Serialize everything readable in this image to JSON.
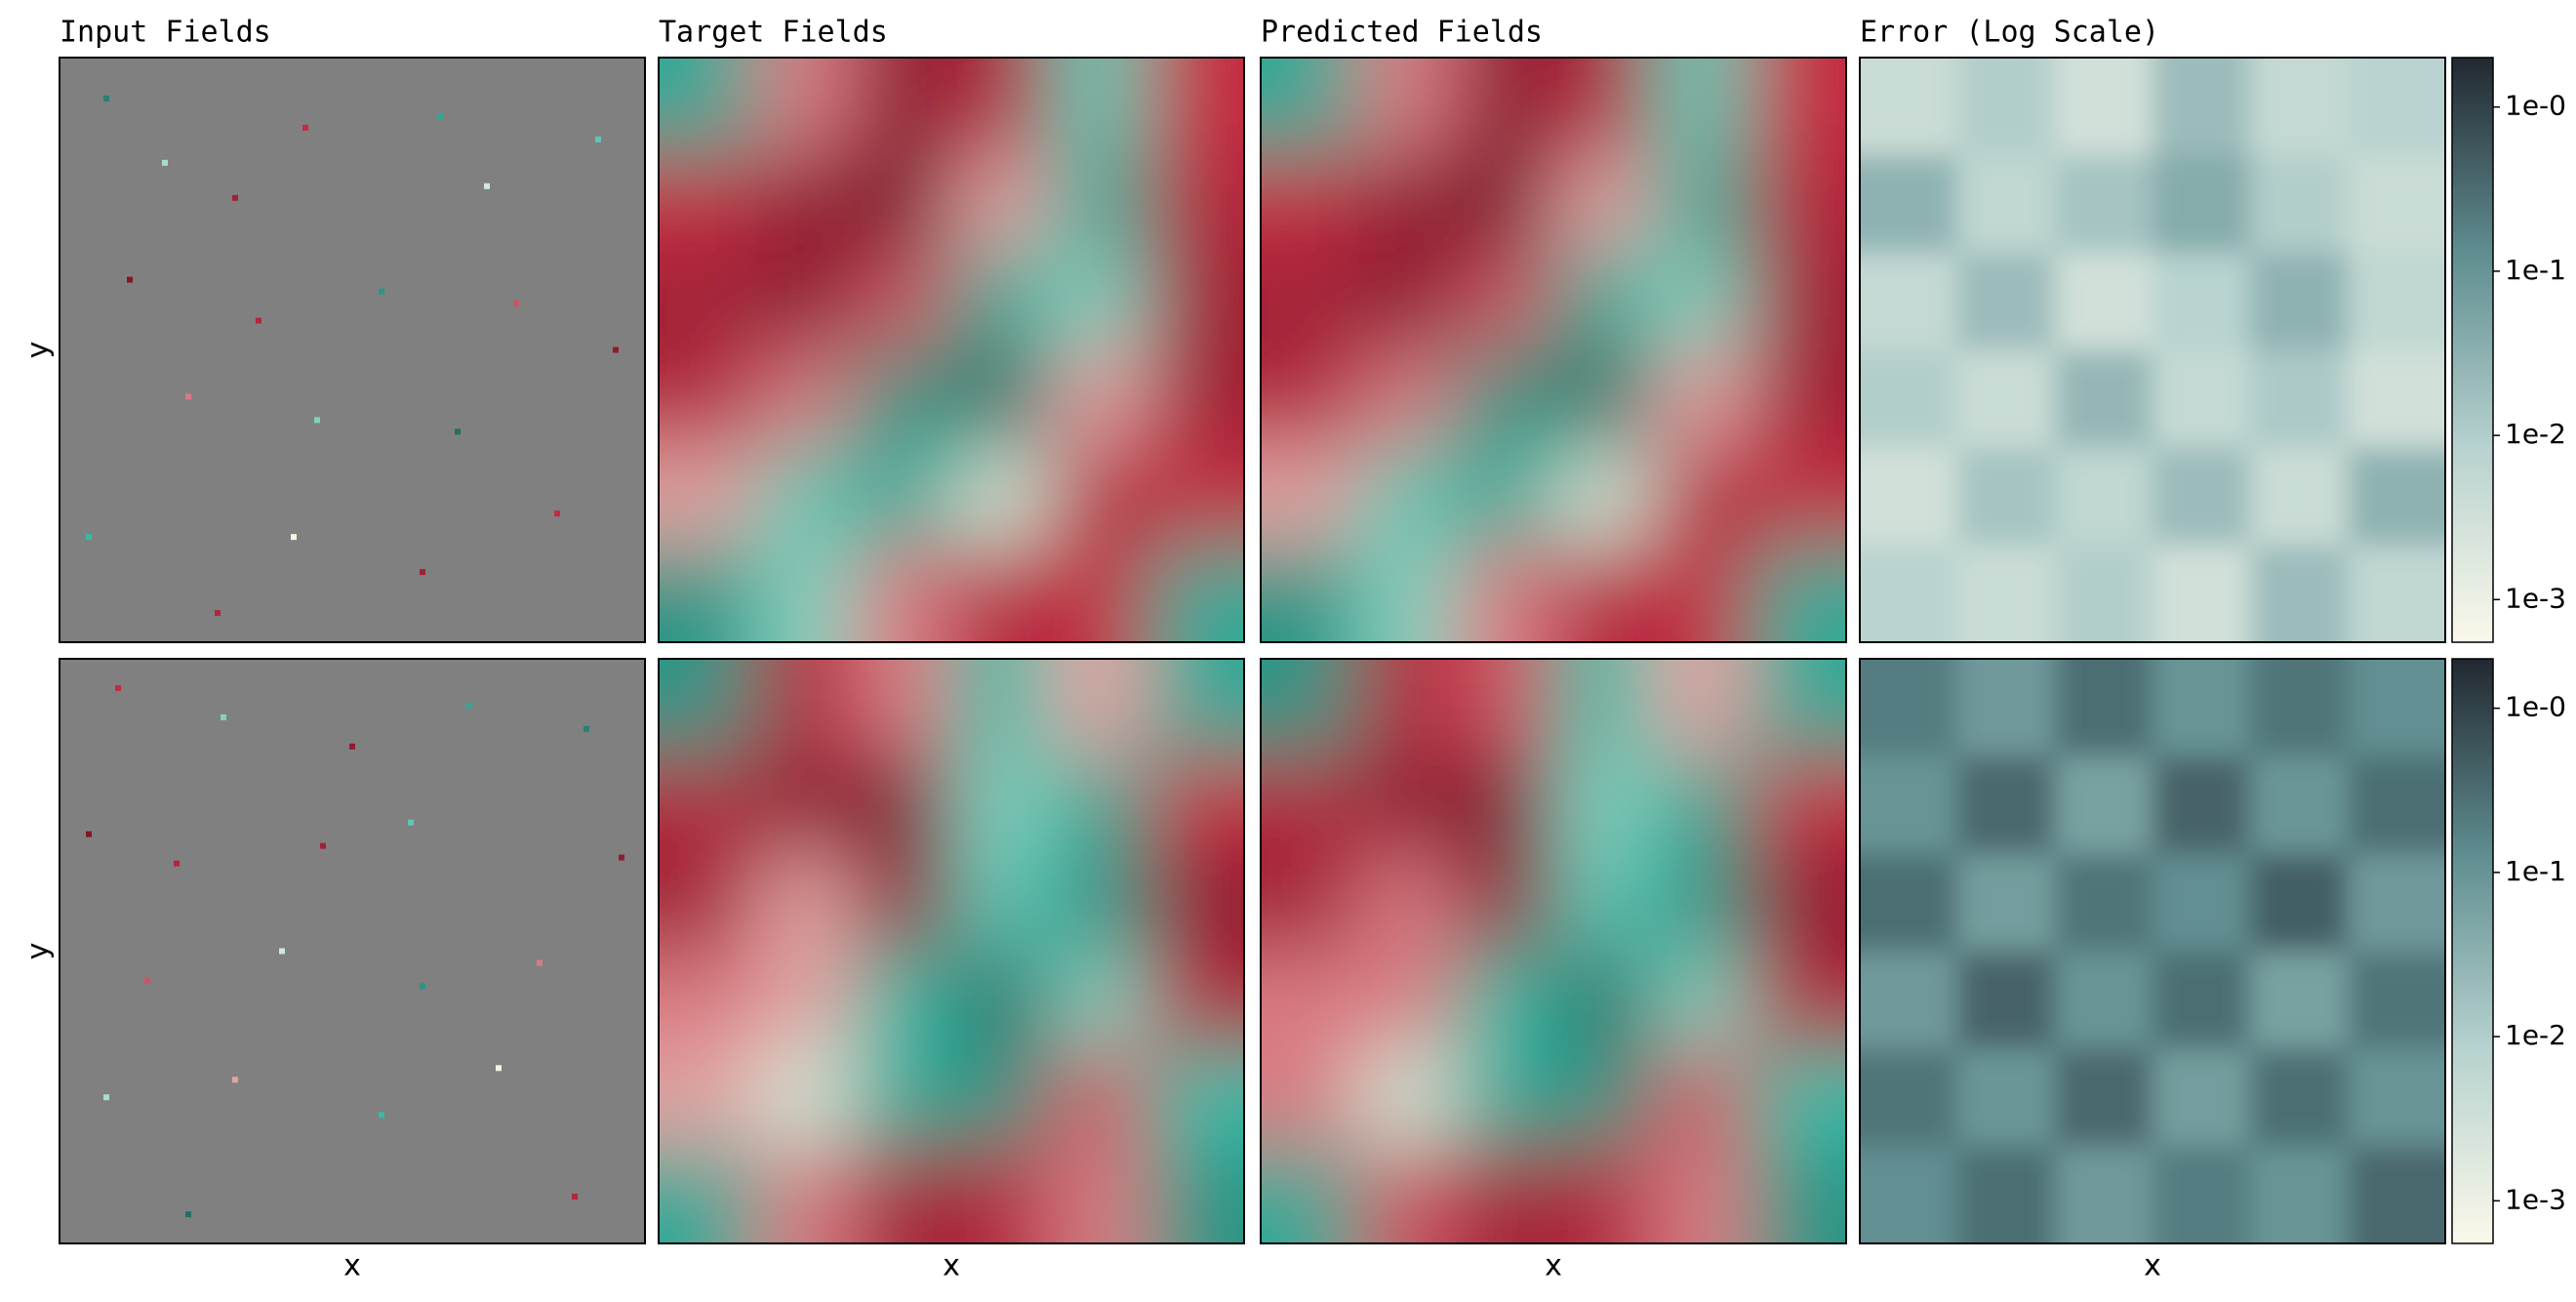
{
  "chart_data": {
    "type": "heatmap",
    "titles": [
      "Input Fields",
      "Target Fields",
      "Predicted Fields",
      "Error (Log Scale)"
    ],
    "xlabel": "x",
    "ylabel": "y",
    "xlim": [
      0,
      1
    ],
    "ylim": [
      0,
      1
    ],
    "field_clim": [
      -1,
      1
    ],
    "field_colormap": [
      "#6b1424",
      "#c42a42",
      "#f8f3e3",
      "#35bba8",
      "#1c5c54"
    ],
    "input_background": "#808080",
    "error_clim": [
      0.00055,
      2
    ],
    "error_log_scale": true,
    "error_colormap": [
      "#fbf8ea",
      "#b7d2cf",
      "#5f8d90",
      "#222831"
    ],
    "error_ticks": [
      {
        "value": 1,
        "label": "1e-0"
      },
      {
        "value": 0.1,
        "label": "1e-1"
      },
      {
        "value": 0.01,
        "label": "1e-2"
      },
      {
        "value": 0.001,
        "label": "1e-3"
      }
    ],
    "rows": [
      {
        "input": [
          {
            "x": 0.08,
            "y": 0.93,
            "value": 0.8
          },
          {
            "x": 0.18,
            "y": 0.82,
            "value": 0.2
          },
          {
            "x": 0.3,
            "y": 0.76,
            "value": -0.7
          },
          {
            "x": 0.42,
            "y": 0.88,
            "value": -0.5
          },
          {
            "x": 0.65,
            "y": 0.9,
            "value": 0.6
          },
          {
            "x": 0.73,
            "y": 0.78,
            "value": 0.1
          },
          {
            "x": 0.92,
            "y": 0.86,
            "value": 0.4
          },
          {
            "x": 0.12,
            "y": 0.62,
            "value": -0.9
          },
          {
            "x": 0.34,
            "y": 0.55,
            "value": -0.6
          },
          {
            "x": 0.55,
            "y": 0.6,
            "value": 0.7
          },
          {
            "x": 0.78,
            "y": 0.58,
            "value": -0.4
          },
          {
            "x": 0.95,
            "y": 0.5,
            "value": -0.8
          },
          {
            "x": 0.22,
            "y": 0.42,
            "value": -0.3
          },
          {
            "x": 0.44,
            "y": 0.38,
            "value": 0.3
          },
          {
            "x": 0.68,
            "y": 0.36,
            "value": 0.9
          },
          {
            "x": 0.05,
            "y": 0.18,
            "value": 0.5
          },
          {
            "x": 0.4,
            "y": 0.18,
            "value": 0.0
          },
          {
            "x": 0.62,
            "y": 0.12,
            "value": -0.7
          },
          {
            "x": 0.85,
            "y": 0.22,
            "value": -0.5
          },
          {
            "x": 0.27,
            "y": 0.05,
            "value": -0.6
          }
        ],
        "target": [
          [
            0.6,
            -0.3,
            -0.8,
            -0.6,
            0.4,
            -0.5
          ],
          [
            -0.5,
            -0.8,
            -0.9,
            -0.2,
            0.6,
            -0.6
          ],
          [
            -0.7,
            -0.8,
            -0.4,
            0.6,
            0.3,
            -0.7
          ],
          [
            -0.6,
            -0.3,
            0.7,
            0.9,
            -0.2,
            -0.7
          ],
          [
            -0.2,
            0.4,
            0.6,
            0.1,
            -0.6,
            -0.5
          ],
          [
            0.7,
            0.3,
            -0.3,
            -0.6,
            -0.5,
            0.6
          ]
        ],
        "predicted": [
          [
            0.6,
            -0.3,
            -0.8,
            -0.6,
            0.4,
            -0.5
          ],
          [
            -0.5,
            -0.8,
            -0.9,
            -0.2,
            0.6,
            -0.6
          ],
          [
            -0.7,
            -0.8,
            -0.4,
            0.6,
            0.3,
            -0.7
          ],
          [
            -0.6,
            -0.3,
            0.7,
            0.9,
            -0.2,
            -0.7
          ],
          [
            -0.2,
            0.4,
            0.6,
            0.1,
            -0.6,
            -0.5
          ],
          [
            0.7,
            0.3,
            -0.3,
            -0.6,
            -0.5,
            0.6
          ]
        ],
        "error": [
          [
            0.004,
            0.01,
            0.003,
            0.02,
            0.005,
            0.008
          ],
          [
            0.03,
            0.006,
            0.015,
            0.04,
            0.01,
            0.004
          ],
          [
            0.005,
            0.02,
            0.003,
            0.008,
            0.03,
            0.006
          ],
          [
            0.01,
            0.004,
            0.025,
            0.005,
            0.012,
            0.003
          ],
          [
            0.003,
            0.015,
            0.006,
            0.02,
            0.004,
            0.03
          ],
          [
            0.008,
            0.004,
            0.01,
            0.003,
            0.02,
            0.006
          ]
        ]
      },
      {
        "input": [
          {
            "x": 0.1,
            "y": 0.95,
            "value": -0.5
          },
          {
            "x": 0.28,
            "y": 0.9,
            "value": 0.3
          },
          {
            "x": 0.5,
            "y": 0.85,
            "value": -0.8
          },
          {
            "x": 0.7,
            "y": 0.92,
            "value": 0.6
          },
          {
            "x": 0.9,
            "y": 0.88,
            "value": 0.8
          },
          {
            "x": 0.05,
            "y": 0.7,
            "value": -0.9
          },
          {
            "x": 0.2,
            "y": 0.65,
            "value": -0.6
          },
          {
            "x": 0.45,
            "y": 0.68,
            "value": -0.7
          },
          {
            "x": 0.6,
            "y": 0.72,
            "value": 0.4
          },
          {
            "x": 0.96,
            "y": 0.66,
            "value": -0.8
          },
          {
            "x": 0.15,
            "y": 0.45,
            "value": -0.4
          },
          {
            "x": 0.38,
            "y": 0.5,
            "value": 0.1
          },
          {
            "x": 0.62,
            "y": 0.44,
            "value": 0.7
          },
          {
            "x": 0.82,
            "y": 0.48,
            "value": -0.3
          },
          {
            "x": 0.08,
            "y": 0.25,
            "value": 0.2
          },
          {
            "x": 0.3,
            "y": 0.28,
            "value": -0.2
          },
          {
            "x": 0.55,
            "y": 0.22,
            "value": 0.5
          },
          {
            "x": 0.75,
            "y": 0.3,
            "value": 0.0
          },
          {
            "x": 0.22,
            "y": 0.05,
            "value": 0.9
          },
          {
            "x": 0.88,
            "y": 0.08,
            "value": -0.6
          }
        ],
        "target": [
          [
            0.7,
            -0.6,
            -0.3,
            0.5,
            -0.2,
            0.6
          ],
          [
            -0.6,
            -0.8,
            -0.9,
            0.3,
            0.6,
            -0.5
          ],
          [
            -0.7,
            -0.2,
            -0.8,
            0.4,
            0.7,
            -0.8
          ],
          [
            -0.3,
            -0.2,
            0.5,
            0.9,
            0.3,
            -0.6
          ],
          [
            -0.2,
            0.1,
            0.6,
            0.7,
            -0.4,
            0.5
          ],
          [
            0.6,
            -0.3,
            -0.7,
            -0.6,
            -0.3,
            0.7
          ]
        ],
        "predicted": [
          [
            0.7,
            -0.6,
            -0.4,
            0.5,
            -0.2,
            0.6
          ],
          [
            -0.6,
            -0.8,
            -0.9,
            0.3,
            0.6,
            -0.5
          ],
          [
            -0.7,
            -0.3,
            -0.8,
            0.4,
            0.7,
            -0.8
          ],
          [
            -0.3,
            -0.3,
            0.5,
            0.9,
            0.3,
            -0.6
          ],
          [
            -0.3,
            0.1,
            0.6,
            0.7,
            -0.4,
            0.5
          ],
          [
            0.6,
            -0.4,
            -0.7,
            -0.6,
            -0.3,
            0.7
          ]
        ],
        "error": [
          [
            0.2,
            0.08,
            0.3,
            0.1,
            0.25,
            0.12
          ],
          [
            0.1,
            0.35,
            0.06,
            0.4,
            0.09,
            0.3
          ],
          [
            0.3,
            0.07,
            0.25,
            0.12,
            0.45,
            0.08
          ],
          [
            0.08,
            0.4,
            0.1,
            0.3,
            0.06,
            0.25
          ],
          [
            0.25,
            0.09,
            0.35,
            0.07,
            0.3,
            0.1
          ],
          [
            0.12,
            0.3,
            0.08,
            0.2,
            0.1,
            0.35
          ]
        ]
      }
    ]
  }
}
